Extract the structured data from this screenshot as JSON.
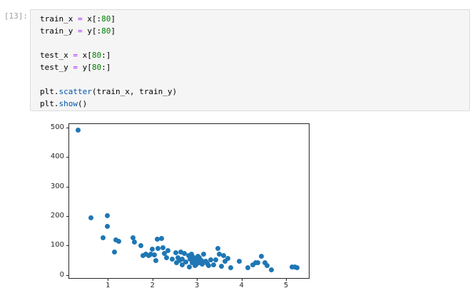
{
  "cell": {
    "prompt": "[13]:",
    "code_lines": [
      [
        {
          "t": "train_x ",
          "c": "p"
        },
        {
          "t": "=",
          "c": "o"
        },
        {
          "t": " x[:",
          "c": "p"
        },
        {
          "t": "80",
          "c": "n"
        },
        {
          "t": "]",
          "c": "p"
        }
      ],
      [
        {
          "t": "train_y ",
          "c": "p"
        },
        {
          "t": "=",
          "c": "o"
        },
        {
          "t": " y[:",
          "c": "p"
        },
        {
          "t": "80",
          "c": "n"
        },
        {
          "t": "]",
          "c": "p"
        }
      ],
      [],
      [
        {
          "t": "test_x ",
          "c": "p"
        },
        {
          "t": "=",
          "c": "o"
        },
        {
          "t": " x[",
          "c": "p"
        },
        {
          "t": "80",
          "c": "n"
        },
        {
          "t": ":]",
          "c": "p"
        }
      ],
      [
        {
          "t": "test_y ",
          "c": "p"
        },
        {
          "t": "=",
          "c": "o"
        },
        {
          "t": " y[",
          "c": "p"
        },
        {
          "t": "80",
          "c": "n"
        },
        {
          "t": ":]",
          "c": "p"
        }
      ],
      [],
      [
        {
          "t": "plt.",
          "c": "p"
        },
        {
          "t": "scatter",
          "c": "f"
        },
        {
          "t": "(train_x, train_y)",
          "c": "p"
        }
      ],
      [
        {
          "t": "plt.",
          "c": "p"
        },
        {
          "t": "show",
          "c": "f"
        },
        {
          "t": "()",
          "c": "p"
        }
      ]
    ]
  },
  "colors": {
    "syntax": {
      "p": "#000000",
      "o": "#aa22ff",
      "n": "#008000",
      "f": "#0055aa"
    },
    "prompt": "#9e9e9e",
    "cell_background": "#f5f5f5",
    "cell_border": "#dcdcdc",
    "axis": "#262626",
    "marker": "#1f77b4"
  },
  "chart_data": {
    "type": "scatter",
    "xlim": [
      0.13,
      5.51
    ],
    "ylim": [
      -10,
      511
    ],
    "xticks": [
      1,
      2,
      3,
      4,
      5
    ],
    "yticks": [
      0,
      100,
      200,
      300,
      400,
      500
    ],
    "grid": false,
    "marker_color": "#1f77b4",
    "marker_diameter_px": 7,
    "points": [
      [
        0.33,
        491
      ],
      [
        0.61,
        195
      ],
      [
        0.89,
        126
      ],
      [
        0.98,
        201
      ],
      [
        0.98,
        164
      ],
      [
        1.15,
        79
      ],
      [
        1.18,
        120
      ],
      [
        1.24,
        114
      ],
      [
        1.57,
        127
      ],
      [
        1.59,
        111
      ],
      [
        1.74,
        101
      ],
      [
        1.79,
        65
      ],
      [
        1.85,
        70
      ],
      [
        1.92,
        66
      ],
      [
        1.97,
        72
      ],
      [
        2.0,
        89
      ],
      [
        2.05,
        68
      ],
      [
        2.08,
        50
      ],
      [
        2.1,
        121
      ],
      [
        2.13,
        90
      ],
      [
        2.2,
        123
      ],
      [
        2.24,
        92
      ],
      [
        2.27,
        74
      ],
      [
        2.31,
        59
      ],
      [
        2.35,
        82
      ],
      [
        2.45,
        55
      ],
      [
        2.52,
        75
      ],
      [
        2.54,
        42
      ],
      [
        2.57,
        59
      ],
      [
        2.6,
        50
      ],
      [
        2.64,
        79
      ],
      [
        2.66,
        35
      ],
      [
        2.67,
        55
      ],
      [
        2.72,
        74
      ],
      [
        2.75,
        45
      ],
      [
        2.81,
        67
      ],
      [
        2.83,
        27
      ],
      [
        2.85,
        55
      ],
      [
        2.87,
        71
      ],
      [
        2.89,
        42
      ],
      [
        2.9,
        62
      ],
      [
        2.92,
        59
      ],
      [
        2.94,
        47
      ],
      [
        2.95,
        33
      ],
      [
        2.96,
        51
      ],
      [
        2.98,
        55
      ],
      [
        2.99,
        38
      ],
      [
        3.01,
        44
      ],
      [
        3.02,
        64
      ],
      [
        3.04,
        52
      ],
      [
        3.05,
        58
      ],
      [
        3.07,
        42
      ],
      [
        3.1,
        50
      ],
      [
        3.12,
        38
      ],
      [
        3.15,
        72
      ],
      [
        3.19,
        47
      ],
      [
        3.22,
        40
      ],
      [
        3.26,
        33
      ],
      [
        3.31,
        51
      ],
      [
        3.37,
        35
      ],
      [
        3.42,
        52
      ],
      [
        3.47,
        91
      ],
      [
        3.5,
        70
      ],
      [
        3.54,
        31
      ],
      [
        3.6,
        67
      ],
      [
        3.63,
        47
      ],
      [
        3.69,
        56
      ],
      [
        3.75,
        26
      ],
      [
        3.95,
        46
      ],
      [
        4.14,
        26
      ],
      [
        4.25,
        35
      ],
      [
        4.32,
        43
      ],
      [
        4.37,
        41
      ],
      [
        4.44,
        64
      ],
      [
        4.53,
        42
      ],
      [
        4.57,
        33
      ],
      [
        4.67,
        18
      ],
      [
        5.14,
        28
      ],
      [
        5.2,
        27
      ],
      [
        5.25,
        26
      ]
    ]
  }
}
